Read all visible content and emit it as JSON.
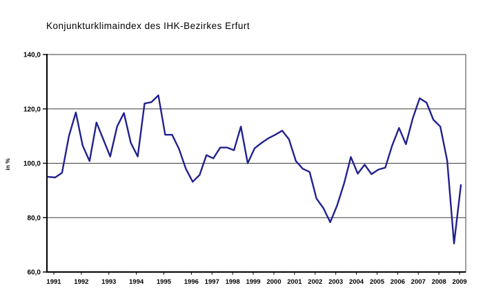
{
  "page": {
    "background": "#ffffff"
  },
  "chart_data": {
    "type": "line",
    "title": "Konjunkturklimaindex des IHK-Bezirkes Erfurt",
    "ylabel": "in %",
    "xlabel": "",
    "ylim": [
      60,
      140
    ],
    "grid": true,
    "legend": "none",
    "decimal_style": "german-comma",
    "line_color": "#21218e",
    "axis_color": "#000000",
    "grid_color": "#3d3d3d",
    "yticks": [
      {
        "value": 140,
        "label": "140,0"
      },
      {
        "value": 120,
        "label": "120,0"
      },
      {
        "value": 100,
        "label": "100,0"
      },
      {
        "value": 80,
        "label": "80,0"
      },
      {
        "value": 60,
        "label": "60,0"
      }
    ],
    "year_labels": [
      "1991",
      "1992",
      "1993",
      "1994",
      "1995",
      "1996",
      "1997",
      "1998",
      "1999",
      "2000",
      "2001",
      "2002",
      "2003",
      "2004",
      "2005",
      "2006",
      "2007",
      "2008",
      "2009"
    ],
    "points_per_year": [
      4,
      4,
      4,
      4,
      4,
      3,
      3,
      3,
      3,
      3,
      3,
      3,
      3,
      3,
      3,
      3,
      3,
      3,
      2
    ],
    "series": [
      {
        "name": "Konjunkturklimaindex",
        "values": [
          95.0,
          94.8,
          96.5,
          110.0,
          118.7,
          106.5,
          100.8,
          115.0,
          108.8,
          102.5,
          113.5,
          118.5,
          107.5,
          102.5,
          122.0,
          122.5,
          125.0,
          110.5,
          110.5,
          105.3,
          98.0,
          93.2,
          95.7,
          103.0,
          101.8,
          105.8,
          105.8,
          104.8,
          113.5,
          100.0,
          105.5,
          107.5,
          109.2,
          110.5,
          112.0,
          108.8,
          100.8,
          98.0,
          96.8,
          87.0,
          83.5,
          78.3,
          84.5,
          92.5,
          102.3,
          96.2,
          99.5,
          96.0,
          97.7,
          98.4,
          106.5,
          113.0,
          107.0,
          116.5,
          123.9,
          122.3,
          116.0,
          113.5,
          101.0,
          70.5,
          92.0
        ]
      }
    ]
  }
}
